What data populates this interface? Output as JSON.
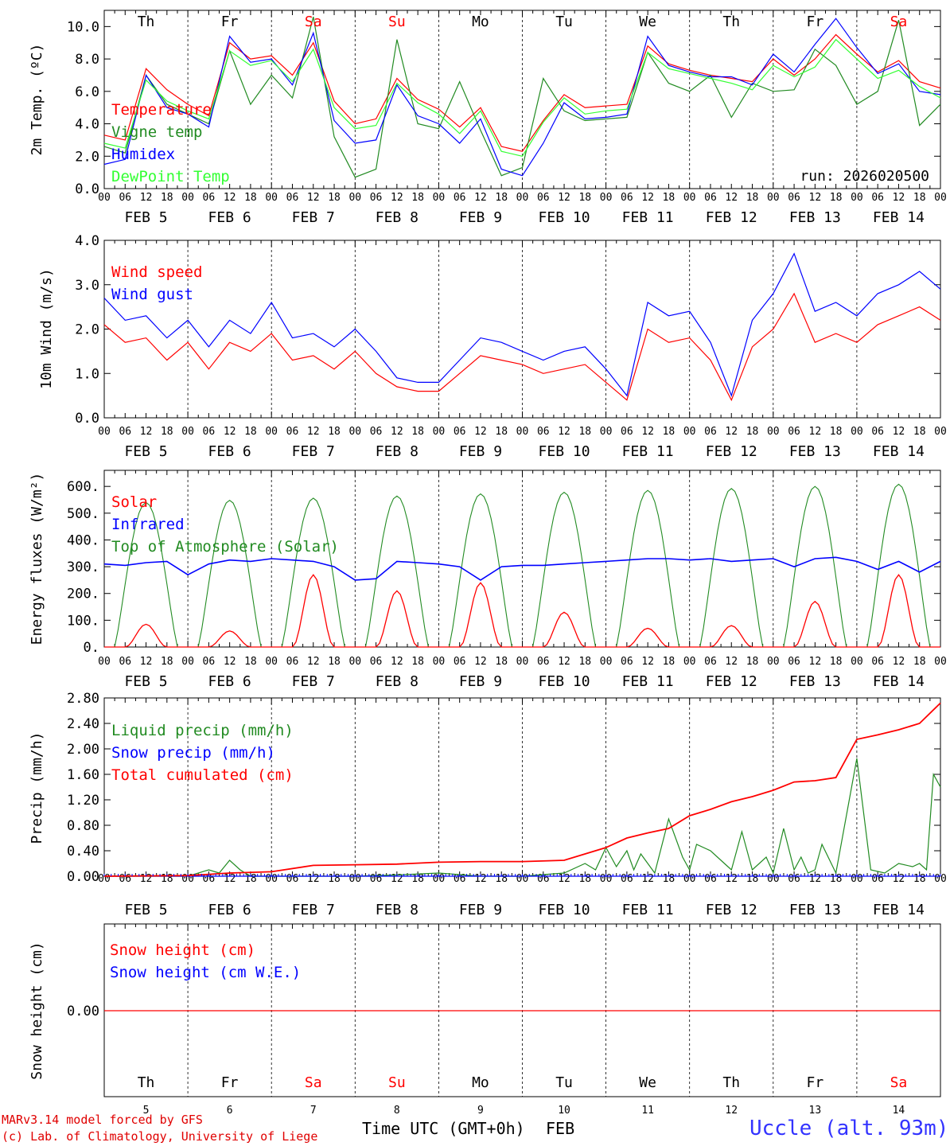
{
  "colors": {
    "red": "#ff0000",
    "darkred": "#e00000",
    "blue": "#0000ff",
    "green": "#228b22",
    "lightgreen": "#33ff33",
    "black": "#000000"
  },
  "days": {
    "names": [
      "Th",
      "Fr",
      "Sa",
      "Su",
      "Mo",
      "Tu",
      "We",
      "Th",
      "Fr",
      "Sa"
    ],
    "weekend": [
      false,
      false,
      true,
      true,
      false,
      false,
      false,
      false,
      false,
      true
    ],
    "dates": [
      "FEB  5",
      "FEB  6",
      "FEB  7",
      "FEB  8",
      "FEB  9",
      "FEB 10",
      "FEB 11",
      "FEB 12",
      "FEB 13",
      "FEB 14"
    ],
    "numbers": [
      "5",
      "6",
      "7",
      "8",
      "9",
      "10",
      "11",
      "12",
      "13",
      "14"
    ],
    "hour_ticks": [
      "00",
      "06",
      "12",
      "18"
    ]
  },
  "chart_data": [
    {
      "id": "temperature",
      "type": "line",
      "ylabel": "2m Temp. (ºC)",
      "ylim": [
        0,
        11
      ],
      "yticks": [
        "0.0",
        "2.0",
        "4.0",
        "6.0",
        "8.0",
        "10.0"
      ],
      "ytick_values": [
        0,
        2,
        4,
        6,
        8,
        10
      ],
      "run_label": "run: 2026020500",
      "x_hours": [
        0,
        6,
        12,
        18,
        24,
        30,
        36,
        42,
        48,
        54,
        60,
        66,
        72,
        78,
        84,
        90,
        96,
        102,
        108,
        114,
        120,
        126,
        132,
        138,
        144,
        150,
        156,
        162,
        168,
        174,
        180,
        186,
        192,
        198,
        204,
        210,
        216,
        222,
        228,
        234,
        240
      ],
      "series": [
        {
          "name": "Temperature",
          "color": "#ff0000",
          "values": [
            3.3,
            3.0,
            7.4,
            6.1,
            5.2,
            4.5,
            9.0,
            8.0,
            8.2,
            7.0,
            9.0,
            5.4,
            4.0,
            4.3,
            6.8,
            5.5,
            4.9,
            3.8,
            5.0,
            2.6,
            2.3,
            4.2,
            5.8,
            5.0,
            5.1,
            5.2,
            8.8,
            7.7,
            7.3,
            7.0,
            6.8,
            6.6,
            8.0,
            7.0,
            8.0,
            9.5,
            8.3,
            7.2,
            7.9,
            6.6,
            6.2
          ]
        },
        {
          "name": "Vigne temp",
          "color": "#228b22",
          "values": [
            2.6,
            2.2,
            7.0,
            5.2,
            4.6,
            4.0,
            8.5,
            5.2,
            7.0,
            5.6,
            10.6,
            3.2,
            0.7,
            1.2,
            9.2,
            4.0,
            3.7,
            6.6,
            3.6,
            0.8,
            1.3,
            6.8,
            4.8,
            4.2,
            4.3,
            4.4,
            8.4,
            6.5,
            6.0,
            7.0,
            4.4,
            6.5,
            6.0,
            6.1,
            8.6,
            7.6,
            5.2,
            6.0,
            10.4,
            3.9,
            5.2
          ]
        },
        {
          "name": "Humidex",
          "color": "#0000ff",
          "values": [
            1.5,
            1.8,
            7.0,
            5.0,
            4.6,
            3.8,
            9.4,
            7.8,
            8.0,
            6.4,
            9.6,
            4.2,
            2.8,
            3.0,
            6.4,
            4.5,
            4.0,
            2.8,
            4.3,
            1.2,
            0.8,
            2.8,
            5.3,
            4.3,
            4.4,
            4.6,
            9.4,
            7.6,
            7.2,
            6.9,
            6.9,
            6.4,
            8.3,
            7.2,
            8.9,
            10.5,
            8.7,
            7.1,
            7.7,
            6.0,
            5.8
          ]
        },
        {
          "name": "DewPoint Temp",
          "color": "#33ff33",
          "values": [
            2.8,
            2.5,
            6.7,
            5.4,
            4.8,
            4.3,
            8.5,
            7.6,
            7.9,
            6.6,
            8.6,
            5.0,
            3.7,
            3.9,
            6.5,
            5.3,
            4.6,
            3.4,
            4.8,
            2.3,
            2.0,
            4.1,
            5.6,
            4.6,
            4.8,
            4.9,
            8.4,
            7.4,
            7.1,
            6.8,
            6.5,
            6.1,
            7.6,
            6.9,
            7.5,
            9.2,
            8.0,
            6.8,
            7.3,
            6.3,
            5.6
          ]
        }
      ]
    },
    {
      "id": "wind",
      "type": "line",
      "ylabel": "10m Wind (m/s)",
      "ylim": [
        0,
        4
      ],
      "yticks": [
        "0.0",
        "1.0",
        "2.0",
        "3.0",
        "4.0"
      ],
      "ytick_values": [
        0,
        1,
        2,
        3,
        4
      ],
      "x_hours": [
        0,
        6,
        12,
        18,
        24,
        30,
        36,
        42,
        48,
        54,
        60,
        66,
        72,
        78,
        84,
        90,
        96,
        102,
        108,
        114,
        120,
        126,
        132,
        138,
        144,
        150,
        156,
        162,
        168,
        174,
        180,
        186,
        192,
        198,
        204,
        210,
        216,
        222,
        228,
        234,
        240
      ],
      "series": [
        {
          "name": "Wind speed",
          "color": "#ff0000",
          "values": [
            2.1,
            1.7,
            1.8,
            1.3,
            1.7,
            1.1,
            1.7,
            1.5,
            1.9,
            1.3,
            1.4,
            1.1,
            1.5,
            1.0,
            0.7,
            0.6,
            0.6,
            1.0,
            1.4,
            1.3,
            1.2,
            1.0,
            1.1,
            1.2,
            0.8,
            0.4,
            2.0,
            1.7,
            1.8,
            1.3,
            0.4,
            1.6,
            2.0,
            2.8,
            1.7,
            1.9,
            1.7,
            2.1,
            2.3,
            2.5,
            2.2
          ]
        },
        {
          "name": "Wind gust",
          "color": "#0000ff",
          "values": [
            2.7,
            2.2,
            2.3,
            1.8,
            2.2,
            1.6,
            2.2,
            1.9,
            2.6,
            1.8,
            1.9,
            1.6,
            2.0,
            1.5,
            0.9,
            0.8,
            0.8,
            1.3,
            1.8,
            1.7,
            1.5,
            1.3,
            1.5,
            1.6,
            1.1,
            0.5,
            2.6,
            2.3,
            2.4,
            1.7,
            0.5,
            2.2,
            2.8,
            3.7,
            2.4,
            2.6,
            2.3,
            2.8,
            3.0,
            3.3,
            2.9
          ]
        }
      ]
    },
    {
      "id": "energy",
      "type": "line",
      "ylabel": "Energy fluxes (W/m²)",
      "ylim": [
        0,
        660
      ],
      "yticks": [
        "0.",
        "100.",
        "200.",
        "300.",
        "400.",
        "500.",
        "600."
      ],
      "ytick_values": [
        0,
        100,
        200,
        300,
        400,
        500,
        600
      ],
      "peak_hours": [
        12,
        36,
        60,
        84,
        108,
        132,
        156,
        180,
        204,
        228
      ],
      "series": [
        {
          "name": "Solar",
          "color": "#ff0000",
          "peaks": [
            85,
            60,
            270,
            210,
            240,
            130,
            70,
            80,
            170,
            270
          ]
        },
        {
          "name": "Infrared",
          "color": "#0000ff",
          "x_hours": [
            0,
            6,
            12,
            18,
            24,
            30,
            36,
            42,
            48,
            54,
            60,
            66,
            72,
            78,
            84,
            90,
            96,
            102,
            108,
            114,
            120,
            126,
            132,
            138,
            144,
            150,
            156,
            162,
            168,
            174,
            180,
            186,
            192,
            198,
            204,
            210,
            216,
            222,
            228,
            234,
            240
          ],
          "values": [
            310,
            305,
            315,
            320,
            270,
            310,
            325,
            320,
            330,
            325,
            320,
            300,
            250,
            255,
            320,
            315,
            310,
            300,
            250,
            300,
            305,
            305,
            310,
            315,
            320,
            325,
            330,
            330,
            325,
            330,
            320,
            325,
            330,
            300,
            330,
            335,
            320,
            290,
            320,
            280,
            320
          ]
        },
        {
          "name": "Top of Atmosphere (Solar)",
          "color": "#228b22",
          "peaks": [
            540,
            548,
            556,
            564,
            572,
            578,
            585,
            592,
            600,
            608
          ]
        }
      ]
    },
    {
      "id": "precip",
      "type": "line",
      "ylabel": "Precip (mm/h)",
      "ylim": [
        0,
        2.8
      ],
      "yticks": [
        "0.00",
        "0.40",
        "0.80",
        "1.20",
        "1.60",
        "2.00",
        "2.40",
        "2.80"
      ],
      "ytick_values": [
        0,
        0.4,
        0.8,
        1.2,
        1.6,
        2.0,
        2.4,
        2.8
      ],
      "series": [
        {
          "name": "Liquid precip (mm/h)",
          "color": "#228b22",
          "x_hours": [
            0,
            12,
            24,
            30,
            33,
            36,
            39,
            42,
            48,
            60,
            72,
            84,
            96,
            108,
            120,
            132,
            138,
            141,
            144,
            147,
            150,
            152,
            154,
            158,
            162,
            166,
            168,
            170,
            174,
            178,
            180,
            183,
            186,
            190,
            192,
            195,
            198,
            200,
            202,
            204,
            206,
            210,
            216,
            220,
            224,
            228,
            232,
            234,
            236,
            238,
            240
          ],
          "values": [
            0,
            0,
            0,
            0.1,
            0.05,
            0.25,
            0.1,
            0,
            0,
            0,
            0,
            0.02,
            0.05,
            0,
            0,
            0.05,
            0.2,
            0.1,
            0.45,
            0.15,
            0.4,
            0.1,
            0.35,
            0.05,
            0.9,
            0.3,
            0.1,
            0.5,
            0.4,
            0.2,
            0.1,
            0.7,
            0.1,
            0.3,
            0.05,
            0.75,
            0.1,
            0.3,
            0.05,
            0.1,
            0.5,
            0.05,
            1.85,
            0.1,
            0.05,
            0.2,
            0.15,
            0.2,
            0.1,
            1.6,
            1.4
          ]
        },
        {
          "name": "Snow precip (mm/h)",
          "color": "#0000ff",
          "x_hours": [
            0,
            240
          ],
          "values": [
            0,
            0
          ]
        },
        {
          "name": "Total cumulated (cm)",
          "color": "#ff0000",
          "x_hours": [
            0,
            24,
            36,
            48,
            60,
            72,
            84,
            96,
            108,
            120,
            132,
            138,
            144,
            150,
            156,
            162,
            168,
            174,
            180,
            186,
            192,
            198,
            204,
            210,
            216,
            222,
            228,
            234,
            240
          ],
          "values": [
            0,
            0.01,
            0.05,
            0.07,
            0.17,
            0.18,
            0.19,
            0.22,
            0.23,
            0.23,
            0.25,
            0.35,
            0.45,
            0.6,
            0.68,
            0.75,
            0.95,
            1.05,
            1.17,
            1.25,
            1.35,
            1.48,
            1.5,
            1.55,
            2.15,
            2.22,
            2.3,
            2.4,
            2.72
          ]
        }
      ]
    },
    {
      "id": "snow",
      "type": "line",
      "ylabel": "Snow height (cm)",
      "ytick_label": "0.00",
      "series": [
        {
          "name": "Snow height (cm)",
          "color": "#ff0000",
          "x_hours": [
            0,
            240
          ],
          "values": [
            0,
            0
          ]
        },
        {
          "name": "Snow height (cm W.E.)",
          "color": "#0000ff",
          "x_hours": [
            0,
            240
          ],
          "values": [
            0,
            0
          ]
        }
      ]
    }
  ],
  "footer": {
    "credit_line1": "MARv3.14 model forced by GFS",
    "credit_line2": "(c) Lab. of Climatology, University of Liege",
    "xaxis_title": "Time UTC (GMT+0h)",
    "xaxis_month": "FEB",
    "station": "Uccle (alt. 93m)"
  }
}
